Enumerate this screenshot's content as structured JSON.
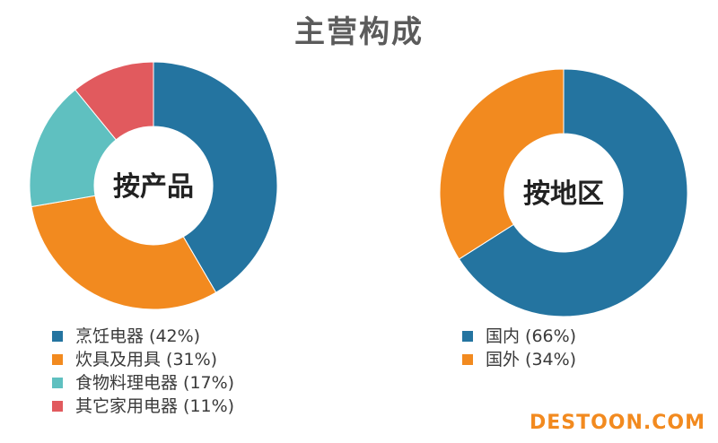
{
  "title": "主营构成",
  "watermark": "DESTOON.COM",
  "chart_data": [
    {
      "type": "pie",
      "donut": true,
      "center_label": "按产品",
      "categories": [
        "烹饪电器 (42%)",
        "炊具及用具 (31%)",
        "食物料理电器 (17%)",
        "其它家用电器 (11%)"
      ],
      "values": [
        42,
        31,
        17,
        11
      ],
      "colors": [
        "#2474a0",
        "#f28a1f",
        "#5fc0c0",
        "#e15a5e"
      ],
      "legend": "bottom-left"
    },
    {
      "type": "pie",
      "donut": true,
      "center_label": "按地区",
      "categories": [
        "国内 (66%)",
        "国外 (34%)"
      ],
      "values": [
        66,
        34
      ],
      "colors": [
        "#2474a0",
        "#f28a1f"
      ],
      "legend": "bottom-left"
    }
  ]
}
